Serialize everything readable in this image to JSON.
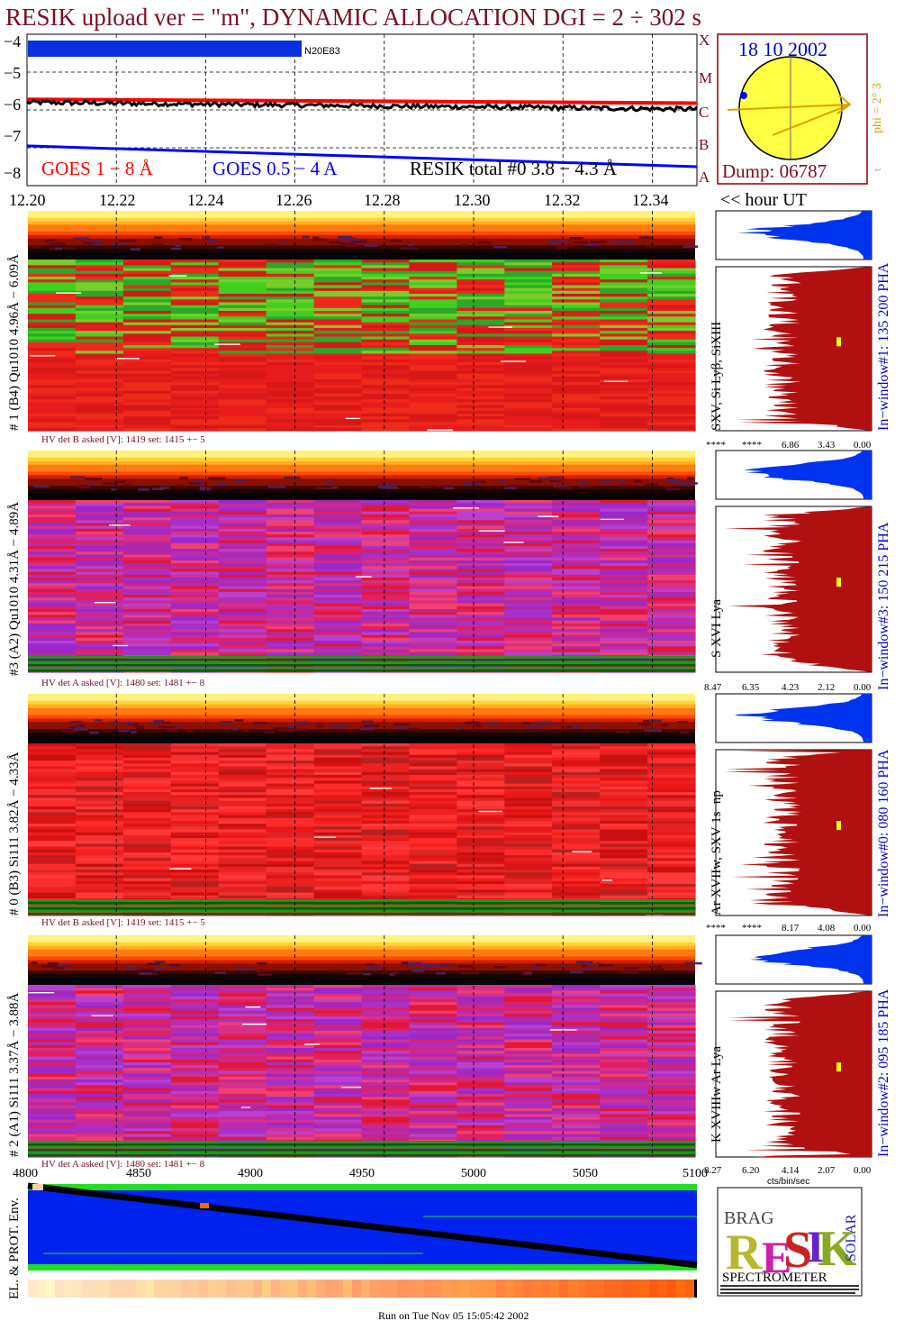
{
  "header": {
    "title": "RESIK upload ver = \"m\", DYNAMIC ALLOCATION  DGI =   2 ÷ 302 s",
    "footer": "Run on Tue Nov 05 15:05:42 2002"
  },
  "goes": {
    "yticks": [
      "−4",
      "−5",
      "−6",
      "−7",
      "−8"
    ],
    "flare_classes": [
      "X",
      "M",
      "C",
      "B",
      "A"
    ],
    "legend_goes1": "GOES 1 − 8 Å",
    "legend_goes05": "GOES 0.5 − 4 A",
    "legend_resik": "RESIK total #0  3.8 − 4.3 Å",
    "region_label": "N20E83",
    "colors": {
      "goes_long": "#ff0000",
      "goes_short": "#0000ff",
      "resik": "#000000"
    }
  },
  "sun": {
    "date": "18 10 2002",
    "dump": "Dump: 06787",
    "phi_label": "phi =  2°  3",
    "phi_tick": "t",
    "colors": {
      "disk": "#ffff44",
      "pointer": "#e0a000",
      "frame": "#8b0000"
    }
  },
  "time_axis": {
    "ticks": [
      "12.20",
      "12.22",
      "12.24",
      "12.26",
      "12.28",
      "12.30",
      "12.32",
      "12.34"
    ],
    "unit_label": "<< hour UT"
  },
  "channels": [
    {
      "label": "# 1 (B4) Qu1010 4.96Å − 6.09Å",
      "lines": "SXV, Si Lyβ, SiXIII",
      "window": "In−window#1:  135 200 PHA",
      "hv": "HV det B asked [V]:  1419 set:  1415  +−  5",
      "xticks": [
        "****",
        "****",
        "6.86",
        "3.43",
        "0.00"
      ],
      "palette": "green"
    },
    {
      "label": "#3 (A2) Qu1010  4.31Å  − 4.89Å",
      "lines": "S XVI Lya",
      "window": "In−window#3:  150 215 PHA",
      "hv": "HV det A asked [V]:  1480 set:  1481  +−  8",
      "xticks": [
        "8.47",
        "6.35",
        "4.23",
        "2.12",
        "0.00"
      ],
      "palette": "purple"
    },
    {
      "label": "# 0 (B3) Si111  3.82Å − 4.33Å",
      "lines": "Ar XVIIw,  SXV 1s−np",
      "window": "In−window#0:  080 160 PHA",
      "hv": "HV det B asked [V]:  1419 set:  1415  +−  5",
      "xticks": [
        "****",
        "****",
        "8.17",
        "4.08",
        "0.00"
      ],
      "palette": "red"
    },
    {
      "label": "# 2 (A1) Si111  3.37Å − 3.88Å",
      "lines": "K XVIIIw  Ar Lya",
      "window": "In−window#2:  095 185 PHA",
      "hv": "HV det A asked [V]:  1480 set:  1481  +−  8",
      "xticks": [
        "8.27",
        "6.20",
        "4.14",
        "2.07",
        "0.00"
      ],
      "palette": "purple"
    }
  ],
  "spectrum_xlabel": "cts/bin/sec",
  "bottom": {
    "xticks": [
      "4800",
      "4850",
      "4900",
      "4950",
      "5000",
      "5050",
      "5100"
    ],
    "ylabel": "EL. & PROT. Env.",
    "colors": {
      "bg": "#0022ee",
      "band": "#22dd22",
      "track": "#000000"
    }
  },
  "logo": {
    "letters": "RESIK",
    "small": [
      "BRAG",
      "SOLAR"
    ],
    "caption": "SPECTROMETER"
  },
  "chart_data": [
    {
      "type": "line",
      "title": "",
      "xlabel": "hour UT",
      "ylabel": "",
      "xlim": [
        12.2,
        12.35
      ],
      "ylim": [
        -8,
        -4
      ],
      "series": [
        {
          "name": "GOES 1 − 8 Å",
          "x": [
            12.2,
            12.35
          ],
          "values": [
            -5.72,
            -5.82
          ]
        },
        {
          "name": "GOES 0.5 − 4 A",
          "x": [
            12.2,
            12.35
          ],
          "values": [
            -6.95,
            -7.5
          ]
        },
        {
          "name": "RESIK total #0  3.8 − 4.3 Å",
          "x": [
            12.2,
            12.35
          ],
          "values": [
            -5.8,
            -5.98
          ]
        }
      ]
    },
    {
      "type": "heatmap",
      "title": "",
      "xlabel": "hour UT",
      "xlim": [
        12.2,
        12.35
      ],
      "panels": [
        "# 1 (B4) Qu1010 4.96Å − 6.09Å",
        "#3 (A2) Qu1010  4.31Å  − 4.89Å",
        "# 0 (B3) Si111  3.82Å − 4.33Å",
        "# 2 (A1) Si111  3.37Å − 3.88Å"
      ]
    },
    {
      "type": "line",
      "title": "",
      "xlabel": "",
      "xlim": [
        4800,
        5100
      ],
      "series": [
        {
          "name": "",
          "x": [
            4800,
            5100
          ],
          "values": [
            1.0,
            0.0
          ]
        }
      ]
    }
  ]
}
